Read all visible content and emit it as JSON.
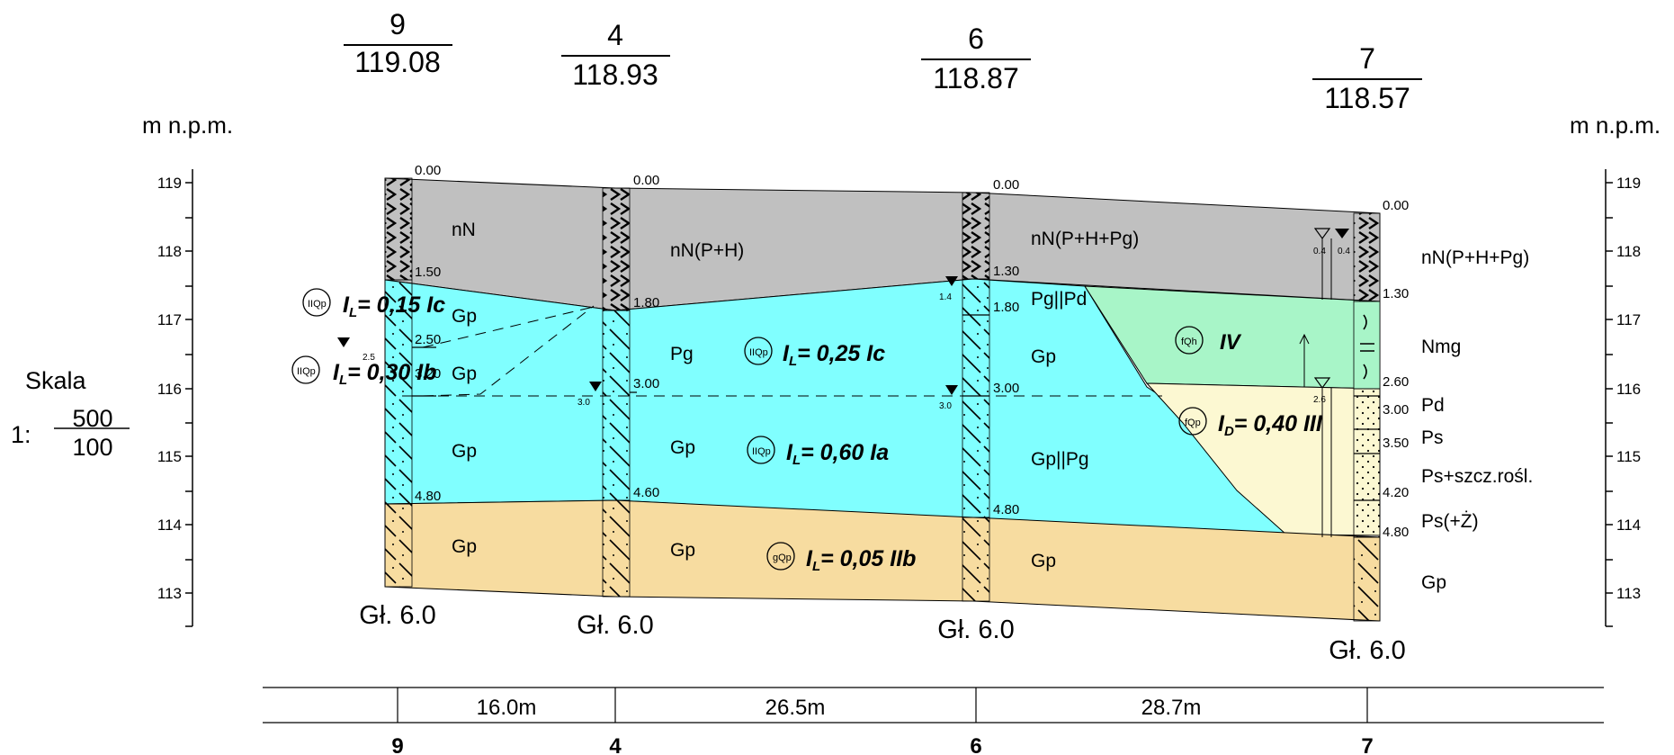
{
  "axis": {
    "unit_label": "m n.p.m.",
    "ticks": [
      "119",
      "118",
      "117",
      "116",
      "115",
      "114",
      "113"
    ]
  },
  "scale": {
    "label": "Skala",
    "prefix": "1:",
    "numerator": "500",
    "denominator": "100"
  },
  "boreholes": [
    {
      "id": "9",
      "elevation": "119.08",
      "depth_label": "Gł. 6.0",
      "depths": [
        "0.00",
        "1.50",
        "2.50",
        "3.20",
        "4.80"
      ],
      "water": [
        "2.5"
      ]
    },
    {
      "id": "4",
      "elevation": "118.93",
      "depth_label": "Gł. 6.0",
      "depths": [
        "0.00",
        "1.80",
        "3.00",
        "4.60"
      ],
      "water": [
        "3.0"
      ]
    },
    {
      "id": "6",
      "elevation": "118.87",
      "depth_label": "Gł. 6.0",
      "depths": [
        "0.00",
        "1.30",
        "1.80",
        "3.00",
        "4.80"
      ],
      "water": [
        "1.4",
        "3.0"
      ]
    },
    {
      "id": "7",
      "elevation": "118.57",
      "depth_label": "Gł. 6.0",
      "depths": [
        "0.00",
        "1.30",
        "2.60",
        "3.00",
        "3.50",
        "4.20",
        "4.80"
      ],
      "water": [
        "0.4",
        "0.4",
        "2.6"
      ]
    }
  ],
  "distances": [
    "16.0m",
    "26.5m",
    "28.7m"
  ],
  "soil_labels": {
    "b9": [
      "nN",
      "Gp",
      "Gp",
      "Gp",
      "Gp"
    ],
    "b4": [
      "nN(P+H)",
      "Pg",
      "Gp",
      "Gp"
    ],
    "b6": [
      "nN(P+H+Pg)",
      "Pg||Pd",
      "Gp",
      "Gp||Pg",
      "Gp"
    ],
    "b7": [
      "nN(P+H+Pg)",
      "Nmg",
      "Pd",
      "Ps",
      "Ps+szcz.rośl.",
      "Ps(+Ż)",
      "Gp"
    ]
  },
  "parameters": [
    {
      "symbol": "IIQp",
      "value": "I",
      "sub": "L",
      "rest": "= 0,15 Ic"
    },
    {
      "symbol": "IIQp",
      "value": "I",
      "sub": "L",
      "rest": "= 0,30 Ib"
    },
    {
      "symbol": "IIQp",
      "value": "I",
      "sub": "L",
      "rest": "= 0,25 Ic"
    },
    {
      "symbol": "IIQp",
      "value": "I",
      "sub": "L",
      "rest": "= 0,60 Ia"
    },
    {
      "symbol": "gQp",
      "value": "I",
      "sub": "L",
      "rest": "= 0,05 IIb"
    },
    {
      "symbol": "fQh",
      "value": "",
      "sub": "",
      "rest": "IV"
    },
    {
      "symbol": "fQp",
      "value": "I",
      "sub": "D",
      "rest": "= 0,40 III"
    }
  ],
  "colors": {
    "fill_layer": "#c0c0c0",
    "clay_layer": "#80ffff",
    "organic_layer": "#a8f5c8",
    "sand_layer": "#fcf8d2",
    "bottom_layer": "#f7dca0"
  }
}
